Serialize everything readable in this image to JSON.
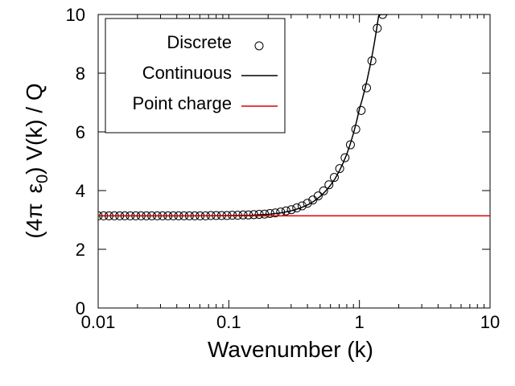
{
  "chart_data": {
    "type": "line",
    "title": "",
    "xlabel": "Wavenumber (k)",
    "ylabel_parts": {
      "prefix": "(4",
      "pi": "π",
      "epsilon": "ε",
      "subscript": "0",
      "suffix": ") V(k) / Q"
    },
    "x_scale": "log",
    "xlim": [
      0.01,
      10
    ],
    "ylim": [
      0,
      10
    ],
    "x_ticks": [
      {
        "value": 0.01,
        "label": "0.01"
      },
      {
        "value": 0.1,
        "label": "0.1"
      },
      {
        "value": 1,
        "label": "1"
      },
      {
        "value": 10,
        "label": "10"
      }
    ],
    "y_ticks": [
      {
        "value": 0,
        "label": "0"
      },
      {
        "value": 2,
        "label": "2"
      },
      {
        "value": 4,
        "label": "4"
      },
      {
        "value": 6,
        "label": "6"
      },
      {
        "value": 8,
        "label": "8"
      },
      {
        "value": 10,
        "label": "10"
      }
    ],
    "grid": false,
    "legend_position": "top-left",
    "series": [
      {
        "name": "Discrete",
        "style": "markers",
        "marker": "open-circle",
        "color": "#000000",
        "x": [
          0.01,
          0.011,
          0.0121,
          0.0133,
          0.0146,
          0.016,
          0.0176,
          0.0194,
          0.0213,
          0.0234,
          0.0257,
          0.0283,
          0.0311,
          0.0342,
          0.0376,
          0.0413,
          0.0454,
          0.0499,
          0.0549,
          0.0603,
          0.0663,
          0.0729,
          0.0801,
          0.0881,
          0.0968,
          0.1064,
          0.117,
          0.1286,
          0.1413,
          0.1554,
          0.1708,
          0.1877,
          0.2064,
          0.2269,
          0.2494,
          0.2741,
          0.3013,
          0.3312,
          0.3641,
          0.4002,
          0.4399,
          0.4836,
          0.5316,
          0.5843,
          0.6423,
          0.7061,
          0.7762,
          0.8532,
          0.9379,
          1.031,
          1.1334,
          1.2459,
          1.3695,
          1.5055
        ],
        "y": [
          3.14,
          3.14,
          3.14,
          3.14,
          3.14,
          3.14,
          3.14,
          3.14,
          3.14,
          3.14,
          3.14,
          3.14,
          3.14,
          3.14,
          3.14,
          3.14,
          3.14,
          3.14,
          3.14,
          3.14,
          3.14,
          3.15,
          3.15,
          3.15,
          3.15,
          3.16,
          3.16,
          3.17,
          3.17,
          3.18,
          3.19,
          3.2,
          3.22,
          3.24,
          3.27,
          3.31,
          3.35,
          3.41,
          3.48,
          3.57,
          3.68,
          3.82,
          3.99,
          4.2,
          4.45,
          4.75,
          5.12,
          5.56,
          6.09,
          6.73,
          7.5,
          8.42,
          9.53,
          10.0
        ]
      },
      {
        "name": "Continuous",
        "style": "line",
        "color": "#000000",
        "x": [
          0.01,
          0.02,
          0.05,
          0.1,
          0.15,
          0.2,
          0.25,
          0.3,
          0.35,
          0.4,
          0.45,
          0.5,
          0.55,
          0.6,
          0.65,
          0.7,
          0.75,
          0.8,
          0.85,
          0.9,
          0.95,
          1.0,
          1.05,
          1.1,
          1.15,
          1.2,
          1.25,
          1.3,
          1.35,
          1.4,
          1.45,
          1.5,
          1.55,
          1.6,
          1.65
        ],
        "y": [
          3.14,
          3.14,
          3.14,
          3.15,
          3.16,
          3.19,
          3.24,
          3.31,
          3.4,
          3.51,
          3.64,
          3.8,
          3.98,
          4.18,
          4.4,
          4.66,
          4.94,
          5.24,
          5.58,
          5.95,
          6.35,
          6.78,
          7.1,
          7.45,
          7.81,
          8.2,
          8.6,
          9.02,
          9.47,
          9.93,
          10.0,
          10.0,
          10.0,
          10.0,
          10.0
        ]
      },
      {
        "name": "Point charge",
        "style": "line",
        "color": "#dd0000",
        "x": [
          0.01,
          10
        ],
        "y": [
          3.1416,
          3.1416
        ]
      }
    ]
  }
}
